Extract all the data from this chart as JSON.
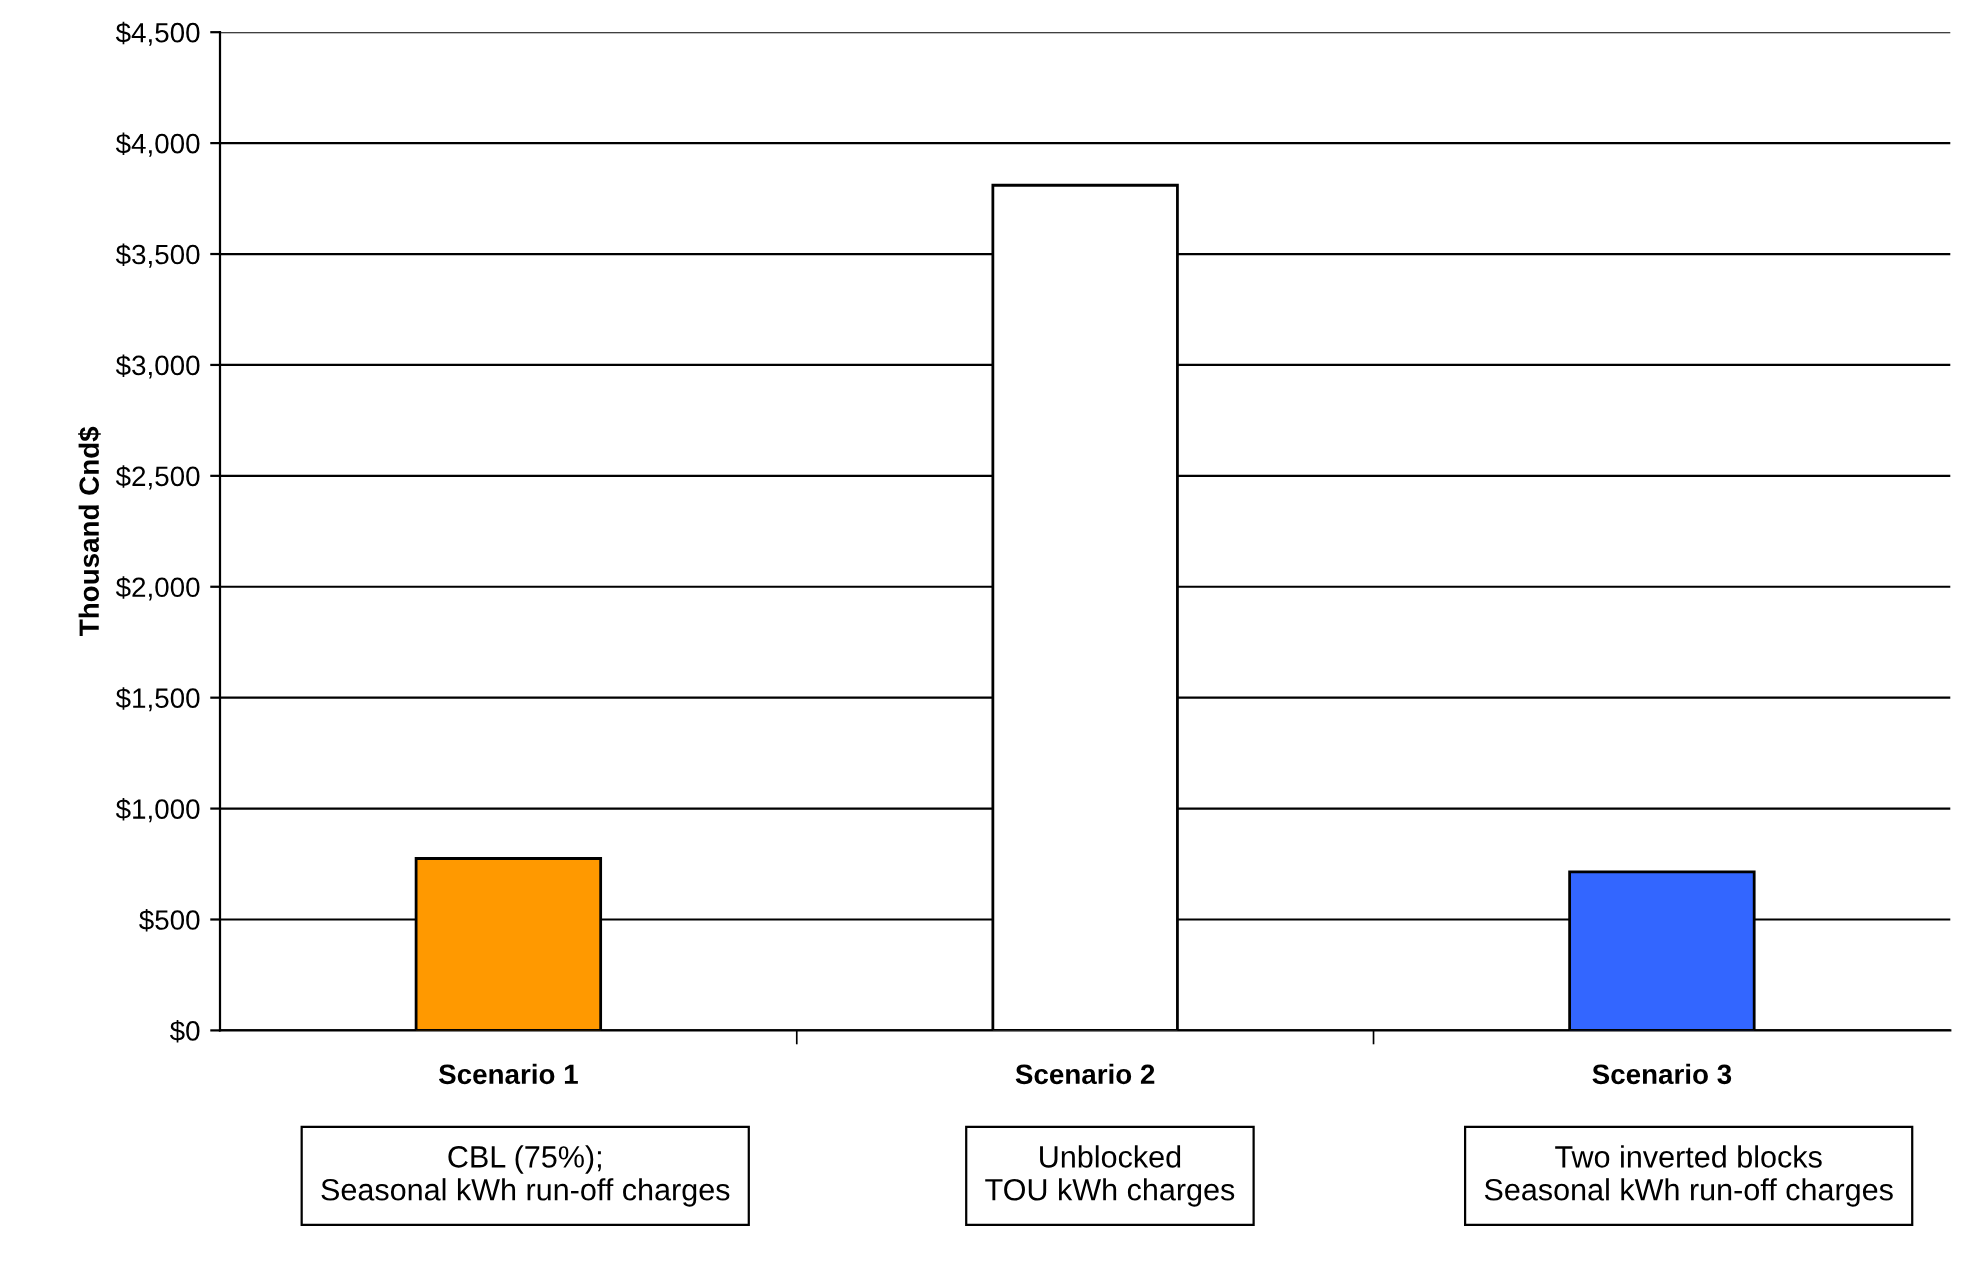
{
  "chart_data": {
    "type": "bar",
    "ylabel": "Thousand Cnd$",
    "categories": [
      "Scenario 1",
      "Scenario 2",
      "Scenario 3"
    ],
    "values": [
      775,
      3810,
      715
    ],
    "colors": [
      "#ff9900",
      "#ffffff",
      "#3366ff"
    ],
    "ylim": [
      0,
      4500
    ],
    "yticks": [
      {
        "value": 0,
        "label": "$0"
      },
      {
        "value": 500,
        "label": "$500"
      },
      {
        "value": 1000,
        "label": "$1,000"
      },
      {
        "value": 1500,
        "label": "$1,500"
      },
      {
        "value": 2000,
        "label": "$2,000"
      },
      {
        "value": 2500,
        "label": "$2,500"
      },
      {
        "value": 3000,
        "label": "$3,000"
      },
      {
        "value": 3500,
        "label": "$3,500"
      },
      {
        "value": 4000,
        "label": "$4,000"
      },
      {
        "value": 4500,
        "label": "$4,500"
      }
    ],
    "grid": "y",
    "legend": false,
    "annotations": [
      "CBL (75%);\nSeasonal kWh run-off charges",
      "Unblocked\nTOU kWh charges",
      "Two inverted blocks\nSeasonal kWh run-off charges"
    ]
  }
}
